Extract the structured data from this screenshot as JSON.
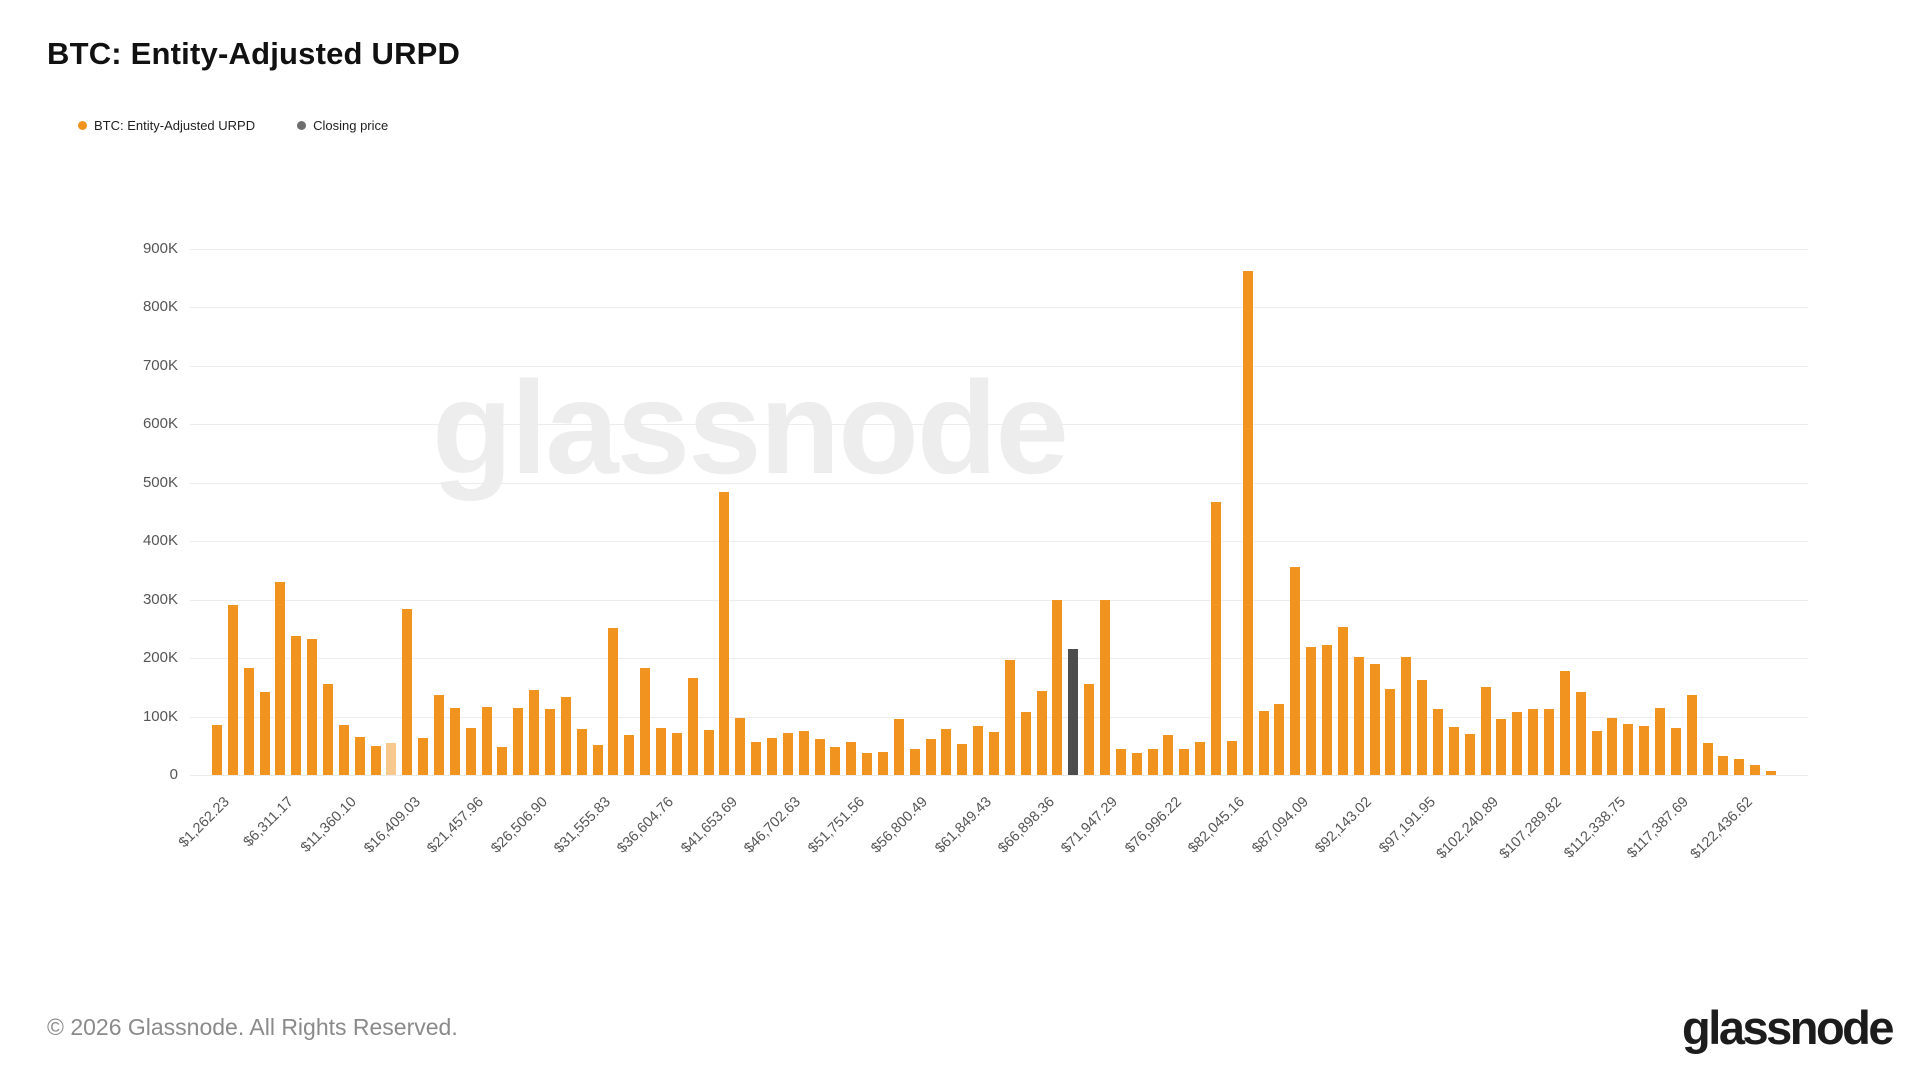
{
  "header": {
    "title": "BTC: Entity-Adjusted URPD"
  },
  "legend": [
    {
      "label": "BTC: Entity-Adjusted URPD",
      "color": "#F1931F"
    },
    {
      "label": "Closing price",
      "color": "#6e6e6e"
    }
  ],
  "watermark_text": "glassnode",
  "footer": {
    "copyright": "© 2026 Glassnode. All Rights Reserved.",
    "logo_text": "glassnode"
  },
  "chart_data": {
    "type": "bar",
    "title": "BTC: Entity-Adjusted URPD",
    "ylabel": "",
    "xlabel": "",
    "grid": true,
    "legend_position": "top-left",
    "ylim_btc": [
      0,
      900000
    ],
    "ytick_labels": [
      "0",
      "100K",
      "200K",
      "300K",
      "400K",
      "500K",
      "600K",
      "700K",
      "800K",
      "900K"
    ],
    "x_label_every_n_bars": 4,
    "x_labels": [
      "$1,262.23",
      "$6,311.17",
      "$11,360.10",
      "$16,409.03",
      "$21,457.96",
      "$26,506.90",
      "$31,555.83",
      "$36,604.76",
      "$41,653.69",
      "$46,702.63",
      "$51,751.56",
      "$56,800.49",
      "$61,849.43",
      "$66,898.36",
      "$71,947.29",
      "$76,996.22",
      "$82,045.16",
      "$87,094.09",
      "$92,143.02",
      "$97,191.95",
      "$102,240.89",
      "$107,289.82",
      "$112,338.75",
      "$117,387.69",
      "$122,436.62"
    ],
    "values_btc_thousands": [
      85,
      290,
      183,
      142,
      330,
      237,
      233,
      156,
      86,
      65,
      50,
      54,
      284,
      64,
      137,
      114,
      81,
      116,
      48,
      115,
      146,
      113,
      133,
      79,
      52,
      251,
      68,
      183,
      80,
      72,
      166,
      77,
      484,
      98,
      56,
      64,
      72,
      75,
      61,
      48,
      56,
      38,
      40,
      95,
      44,
      61,
      78,
      53,
      84,
      73,
      197,
      108,
      144,
      299,
      216,
      155,
      300,
      45,
      38,
      45,
      68,
      44,
      56,
      466,
      58,
      862,
      109,
      121,
      356,
      219,
      222,
      253,
      202,
      190,
      147,
      202,
      162,
      113,
      82,
      70,
      150,
      95,
      108,
      112,
      112,
      178,
      142,
      75,
      98,
      87,
      84,
      114,
      80,
      137,
      55,
      32,
      27,
      17,
      6
    ],
    "bar_color": "#F1931F",
    "pale_bar_index": 11,
    "pale_bar_color": "#F7C98E",
    "closing_price_bar_index": 54,
    "closing_price_bar_color": "#4d4d4d"
  }
}
